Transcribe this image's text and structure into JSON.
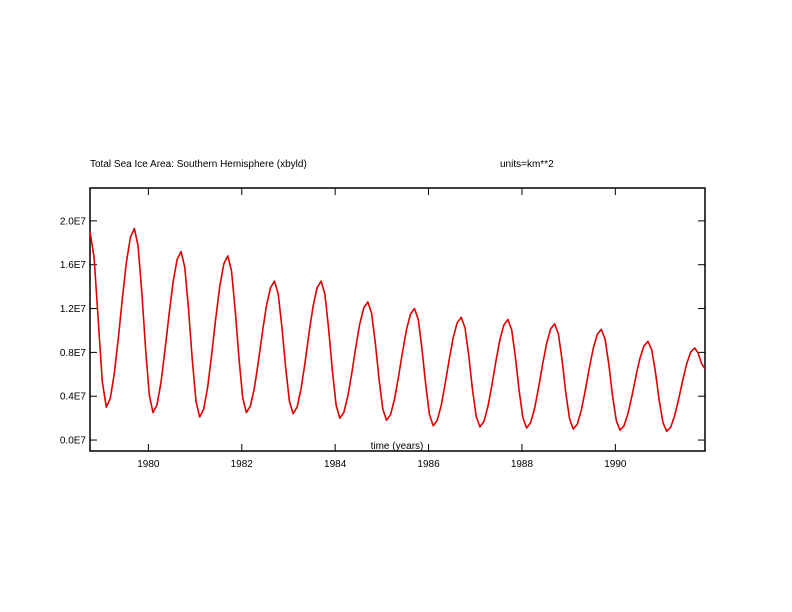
{
  "chart_data": {
    "type": "line",
    "title": "Total Sea Ice Area: Southern Hemisphere (xbyld)",
    "units_label": "units=km**2",
    "xlabel": "time (years)",
    "ylabel": "",
    "xlim": [
      1978.75,
      1991.92
    ],
    "ylim": [
      -0.1,
      2.3
    ],
    "y_scale_note": "values in units of 1E7 km**2",
    "yticks": [
      {
        "value": 0.0,
        "label": "0.0E7"
      },
      {
        "value": 0.4,
        "label": "0.4E7"
      },
      {
        "value": 0.8,
        "label": "0.8E7"
      },
      {
        "value": 1.2,
        "label": "1.2E7"
      },
      {
        "value": 1.6,
        "label": "1.6E7"
      },
      {
        "value": 2.0,
        "label": "2.0E7"
      }
    ],
    "xticks": [
      {
        "value": 1980,
        "label": "1980"
      },
      {
        "value": 1982,
        "label": "1982"
      },
      {
        "value": 1984,
        "label": "1984"
      },
      {
        "value": 1986,
        "label": "1986"
      },
      {
        "value": 1988,
        "label": "1988"
      },
      {
        "value": 1990,
        "label": "1990"
      }
    ],
    "grid": false,
    "line_color": "#e00000",
    "cycles": [
      {
        "min_year": 1979.1,
        "min": 0.3,
        "max_year": 1979.7,
        "max": 1.93
      },
      {
        "min_year": 1980.1,
        "min": 0.25,
        "max_year": 1980.7,
        "max": 1.72
      },
      {
        "min_year": 1981.1,
        "min": 0.21,
        "max_year": 1981.7,
        "max": 1.68
      },
      {
        "min_year": 1982.1,
        "min": 0.25,
        "max_year": 1982.7,
        "max": 1.45
      },
      {
        "min_year": 1983.1,
        "min": 0.24,
        "max_year": 1983.7,
        "max": 1.45
      },
      {
        "min_year": 1984.1,
        "min": 0.2,
        "max_year": 1984.7,
        "max": 1.26
      },
      {
        "min_year": 1985.1,
        "min": 0.18,
        "max_year": 1985.7,
        "max": 1.2
      },
      {
        "min_year": 1986.1,
        "min": 0.13,
        "max_year": 1986.7,
        "max": 1.12
      },
      {
        "min_year": 1987.1,
        "min": 0.12,
        "max_year": 1987.7,
        "max": 1.1
      },
      {
        "min_year": 1988.1,
        "min": 0.11,
        "max_year": 1988.7,
        "max": 1.06
      },
      {
        "min_year": 1989.1,
        "min": 0.1,
        "max_year": 1989.7,
        "max": 1.01
      },
      {
        "min_year": 1990.1,
        "min": 0.09,
        "max_year": 1990.7,
        "max": 0.9
      },
      {
        "min_year": 1991.1,
        "min": 0.08,
        "max_year": 1991.7,
        "max": 0.84
      }
    ],
    "start": {
      "year": 1978.75,
      "value": 1.9
    },
    "end": {
      "year": 1991.92,
      "value": 0.65
    }
  }
}
